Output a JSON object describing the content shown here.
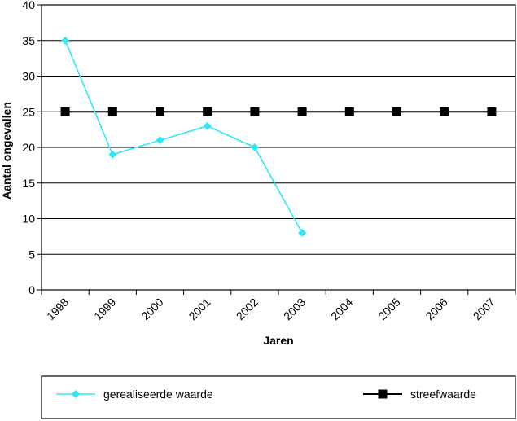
{
  "chart_data": {
    "type": "line",
    "categories": [
      "1998",
      "1999",
      "2000",
      "2001",
      "2002",
      "2003",
      "2004",
      "2005",
      "2006",
      "2007"
    ],
    "series": [
      {
        "name": "gerealiseerde waarde",
        "values": [
          35,
          19,
          21,
          23,
          20,
          8,
          null,
          null,
          null,
          null
        ],
        "color": "#33e6f2",
        "marker": "diamond"
      },
      {
        "name": "streefwaarde",
        "values": [
          25,
          25,
          25,
          25,
          25,
          25,
          25,
          25,
          25,
          25
        ],
        "color": "#000000",
        "marker": "square"
      }
    ],
    "xlabel": "Jaren",
    "ylabel": "Aantal ongevallen",
    "ylim": [
      0,
      40
    ],
    "yticks": [
      0,
      5,
      10,
      15,
      20,
      25,
      30,
      35,
      40
    ],
    "grid": true,
    "legend_position": "bottom"
  }
}
